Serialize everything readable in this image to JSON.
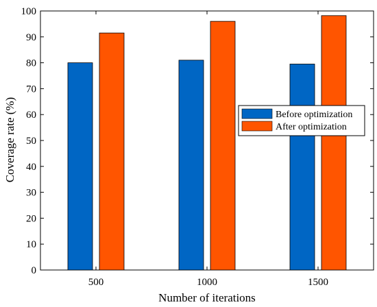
{
  "chart_data": {
    "type": "bar",
    "title": "",
    "xlabel": "Number of iterations",
    "ylabel": "Coverage rate (%)",
    "categories": [
      "500",
      "1000",
      "1500"
    ],
    "series": [
      {
        "name": "Before optimization",
        "values": [
          80,
          81,
          79.5
        ],
        "color": "#0066c4"
      },
      {
        "name": "After optimization",
        "values": [
          91.5,
          96,
          98.2
        ],
        "color": "#ff5500"
      }
    ],
    "ylim": [
      0,
      100
    ],
    "yticks": [
      "0",
      "10",
      "20",
      "30",
      "40",
      "50",
      "60",
      "70",
      "80",
      "90",
      "100"
    ],
    "grid": false,
    "legend_position": "right"
  }
}
